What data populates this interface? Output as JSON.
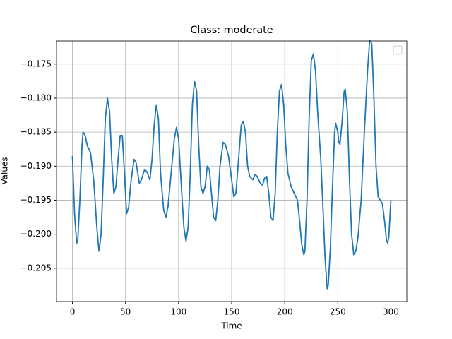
{
  "chart_data": {
    "type": "line",
    "title": "Class: moderate",
    "x_label": "Time",
    "y_label": "Values",
    "x": [
      0,
      2,
      4,
      5,
      7,
      9,
      10,
      12,
      14,
      17,
      20,
      23,
      25,
      27,
      29,
      31,
      33,
      35,
      37,
      39,
      41,
      43,
      45,
      47,
      49,
      51,
      53,
      55,
      58,
      60,
      63,
      65,
      68,
      70,
      73,
      75,
      77,
      79,
      81,
      83,
      86,
      88,
      90,
      93,
      96,
      98,
      100,
      103,
      105,
      107,
      109,
      111,
      113,
      115,
      117,
      119,
      121,
      123,
      125,
      127,
      129,
      131,
      133,
      135,
      137,
      139,
      142,
      144,
      147,
      150,
      152,
      154,
      157,
      159,
      161,
      163,
      165,
      167,
      170,
      172,
      174,
      177,
      179,
      181,
      183,
      185,
      187,
      189,
      191,
      193,
      195,
      197,
      199,
      201,
      203,
      206,
      209,
      212,
      214,
      216,
      218,
      219,
      221,
      223,
      225,
      227,
      229,
      231,
      234,
      236,
      238,
      240,
      241,
      243,
      245,
      247,
      248,
      250,
      251,
      252,
      254,
      256,
      257,
      259,
      261,
      263,
      265,
      267,
      269,
      272,
      275,
      278,
      280,
      282,
      284,
      286,
      288,
      290,
      292,
      294,
      296,
      297,
      298,
      300
    ],
    "series": [
      {
        "color": "#1f77b4",
        "values": [
          -0.1885,
          -0.197,
          -0.2013,
          -0.201,
          -0.195,
          -0.187,
          -0.185,
          -0.1855,
          -0.187,
          -0.188,
          -0.192,
          -0.199,
          -0.2025,
          -0.2,
          -0.192,
          -0.183,
          -0.18,
          -0.182,
          -0.189,
          -0.194,
          -0.193,
          -0.189,
          -0.1855,
          -0.1855,
          -0.191,
          -0.197,
          -0.196,
          -0.1925,
          -0.189,
          -0.1895,
          -0.1925,
          -0.192,
          -0.1905,
          -0.1908,
          -0.192,
          -0.189,
          -0.184,
          -0.181,
          -0.183,
          -0.191,
          -0.1965,
          -0.1975,
          -0.196,
          -0.191,
          -0.186,
          -0.1843,
          -0.186,
          -0.194,
          -0.199,
          -0.201,
          -0.199,
          -0.191,
          -0.181,
          -0.1775,
          -0.179,
          -0.187,
          -0.193,
          -0.194,
          -0.193,
          -0.19,
          -0.1905,
          -0.194,
          -0.1975,
          -0.198,
          -0.195,
          -0.19,
          -0.1865,
          -0.1868,
          -0.1885,
          -0.192,
          -0.1945,
          -0.194,
          -0.188,
          -0.184,
          -0.1834,
          -0.185,
          -0.19,
          -0.1915,
          -0.192,
          -0.1912,
          -0.1915,
          -0.1925,
          -0.1928,
          -0.1918,
          -0.1915,
          -0.194,
          -0.1975,
          -0.198,
          -0.194,
          -0.185,
          -0.179,
          -0.178,
          -0.181,
          -0.187,
          -0.191,
          -0.193,
          -0.194,
          -0.195,
          -0.198,
          -0.2015,
          -0.203,
          -0.2025,
          -0.195,
          -0.183,
          -0.1745,
          -0.1735,
          -0.176,
          -0.182,
          -0.189,
          -0.196,
          -0.2035,
          -0.208,
          -0.2075,
          -0.202,
          -0.193,
          -0.185,
          -0.1837,
          -0.185,
          -0.1865,
          -0.1868,
          -0.1835,
          -0.179,
          -0.1787,
          -0.182,
          -0.192,
          -0.2,
          -0.203,
          -0.2025,
          -0.2005,
          -0.195,
          -0.185,
          -0.176,
          -0.1715,
          -0.172,
          -0.18,
          -0.19,
          -0.1945,
          -0.195,
          -0.1955,
          -0.198,
          -0.201,
          -0.2013,
          -0.2005,
          -0.195
        ]
      }
    ],
    "xlim": [
      -15,
      315
    ],
    "xticks": [
      0,
      50,
      100,
      150,
      200,
      250,
      300
    ],
    "ylim": [
      -0.2099,
      -0.1716
    ],
    "yticks": [
      {
        "value": -0.205,
        "label": "−0.205"
      },
      {
        "value": -0.2,
        "label": "−0.200"
      },
      {
        "value": -0.195,
        "label": "−0.195"
      },
      {
        "value": -0.19,
        "label": "−0.190"
      },
      {
        "value": -0.185,
        "label": "−0.185"
      },
      {
        "value": -0.18,
        "label": "−0.180"
      },
      {
        "value": -0.175,
        "label": "−0.175"
      }
    ],
    "grid": true
  }
}
